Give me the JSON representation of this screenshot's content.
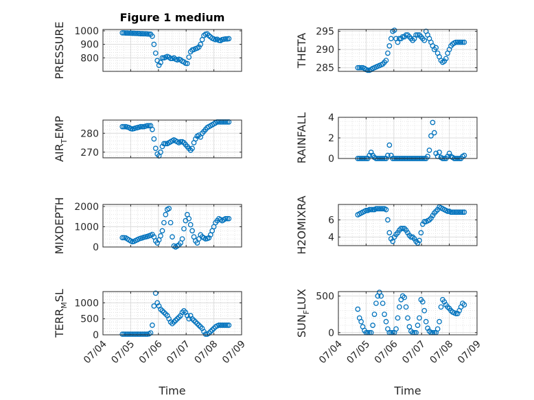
{
  "figure": {
    "title": "Figure 1 medium",
    "x_axis_label": "Time"
  },
  "colors": {
    "marker": "#0072BD",
    "axis": "#262626",
    "grid": "#DCDCDC"
  },
  "chart_data": [
    {
      "type": "scatter",
      "title": "Figure 1 medium",
      "ylabel": "PRESSURE",
      "ylim": [
        700,
        1010
      ],
      "yticks": [
        800,
        900,
        1000
      ],
      "x_ticks": [
        "07/04",
        "07/05",
        "07/06",
        "07/07",
        "07/08",
        "07/09"
      ],
      "xlim": [
        0,
        5
      ],
      "grid": true,
      "x": [
        0.7,
        0.76,
        0.82,
        0.88,
        0.94,
        1.0,
        1.06,
        1.12,
        1.18,
        1.24,
        1.3,
        1.36,
        1.42,
        1.48,
        1.54,
        1.6,
        1.66,
        1.72,
        1.78,
        1.84,
        1.9,
        1.96,
        2.02,
        2.08,
        2.14,
        2.2,
        2.26,
        2.32,
        2.38,
        2.44,
        2.5,
        2.56,
        2.62,
        2.68,
        2.74,
        2.8,
        2.86,
        2.92,
        2.98,
        3.04,
        3.1,
        3.16,
        3.22,
        3.28,
        3.34,
        3.4,
        3.46,
        3.52,
        3.58,
        3.64,
        3.7,
        3.76,
        3.82,
        3.88,
        3.94,
        4.0,
        4.06,
        4.12,
        4.18,
        4.24,
        4.3,
        4.36,
        4.42,
        4.48,
        4.54
      ],
      "y": [
        985,
        985,
        984,
        984,
        983,
        983,
        982,
        982,
        981,
        981,
        980,
        979,
        979,
        978,
        978,
        977,
        976,
        975,
        960,
        900,
        835,
        780,
        745,
        765,
        800,
        800,
        805,
        810,
        805,
        795,
        795,
        800,
        790,
        785,
        790,
        785,
        775,
        770,
        760,
        758,
        805,
        845,
        858,
        862,
        868,
        872,
        880,
        900,
        935,
        965,
        975,
        978,
        965,
        955,
        945,
        940,
        935,
        938,
        930,
        928,
        935,
        938,
        940,
        940,
        942
      ]
    },
    {
      "type": "scatter",
      "ylabel": "THETA",
      "ylim": [
        284,
        295.5
      ],
      "yticks": [
        285,
        290,
        295
      ],
      "x_ticks": [
        "07/04",
        "07/05",
        "07/06",
        "07/07",
        "07/08",
        "07/09"
      ],
      "xlim": [
        0,
        5
      ],
      "grid": true,
      "x": [
        0.7,
        0.76,
        0.82,
        0.88,
        0.94,
        1.0,
        1.06,
        1.12,
        1.18,
        1.24,
        1.3,
        1.36,
        1.42,
        1.48,
        1.54,
        1.6,
        1.66,
        1.72,
        1.78,
        1.84,
        1.9,
        1.96,
        2.02,
        2.08,
        2.14,
        2.2,
        2.26,
        2.32,
        2.38,
        2.44,
        2.5,
        2.56,
        2.62,
        2.68,
        2.74,
        2.8,
        2.86,
        2.92,
        2.98,
        3.04,
        3.1,
        3.16,
        3.22,
        3.28,
        3.34,
        3.4,
        3.46,
        3.52,
        3.58,
        3.64,
        3.7,
        3.76,
        3.82,
        3.88,
        3.94,
        4.0,
        4.06,
        4.12,
        4.18,
        4.24,
        4.3,
        4.36,
        4.42,
        4.48,
        4.54
      ],
      "y": [
        285,
        285,
        285,
        285,
        284.8,
        284.5,
        284.3,
        284.3,
        284.5,
        284.8,
        285,
        285.2,
        285.4,
        285.6,
        285.8,
        286,
        286.5,
        287,
        289,
        291,
        293,
        295,
        295.3,
        293,
        292,
        293,
        293,
        293.5,
        293.5,
        294,
        294,
        293.5,
        293,
        292.5,
        293,
        294,
        294,
        294,
        293.5,
        293,
        292.5,
        295,
        294,
        293,
        292,
        291,
        290,
        290.5,
        289,
        288,
        287,
        286.5,
        286.8,
        287.5,
        289,
        290,
        291,
        291.5,
        291.8,
        292,
        292,
        292,
        292,
        292,
        292
      ]
    },
    {
      "type": "scatter",
      "ylabel": "AIR_TEMP",
      "ylim": [
        267,
        287
      ],
      "yticks": [
        270,
        280
      ],
      "x_ticks": [
        "07/04",
        "07/05",
        "07/06",
        "07/07",
        "07/08",
        "07/09"
      ],
      "xlim": [
        0,
        5
      ],
      "grid": true,
      "x": [
        0.7,
        0.76,
        0.82,
        0.88,
        0.94,
        1.0,
        1.06,
        1.12,
        1.18,
        1.24,
        1.3,
        1.36,
        1.42,
        1.48,
        1.54,
        1.6,
        1.66,
        1.72,
        1.78,
        1.84,
        1.9,
        1.96,
        2.02,
        2.08,
        2.14,
        2.2,
        2.26,
        2.32,
        2.38,
        2.44,
        2.5,
        2.56,
        2.62,
        2.68,
        2.74,
        2.8,
        2.86,
        2.92,
        2.98,
        3.04,
        3.1,
        3.16,
        3.22,
        3.28,
        3.34,
        3.4,
        3.46,
        3.52,
        3.58,
        3.64,
        3.7,
        3.76,
        3.82,
        3.88,
        3.94,
        4.0,
        4.06,
        4.12,
        4.18,
        4.24,
        4.3,
        4.36,
        4.42,
        4.48,
        4.54
      ],
      "y": [
        283.5,
        283.5,
        283.5,
        283.3,
        283,
        282.5,
        282.3,
        282.5,
        282.8,
        283,
        283.2,
        283.5,
        283.5,
        283.5,
        283.8,
        284,
        284,
        284,
        282,
        277,
        272,
        269,
        268,
        270,
        273,
        274.5,
        274.5,
        274.5,
        275,
        275.5,
        276,
        276.5,
        276,
        275.5,
        275,
        275.5,
        275.5,
        275,
        274,
        273,
        272,
        271,
        272,
        275,
        277,
        278.5,
        279,
        278,
        280,
        281,
        282,
        283,
        283.5,
        284,
        284.5,
        285,
        285.5,
        286,
        286,
        286,
        286,
        286,
        286,
        286,
        286
      ]
    },
    {
      "type": "scatter",
      "ylabel": "RAINFALL",
      "ylim": [
        0,
        4
      ],
      "yticks": [
        0,
        2,
        4
      ],
      "x_ticks": [
        "07/04",
        "07/05",
        "07/06",
        "07/07",
        "07/08",
        "07/09"
      ],
      "xlim": [
        0,
        5
      ],
      "grid": true,
      "x": [
        0.7,
        0.76,
        0.82,
        0.88,
        0.94,
        1.0,
        1.06,
        1.12,
        1.18,
        1.24,
        1.3,
        1.36,
        1.42,
        1.48,
        1.54,
        1.6,
        1.66,
        1.72,
        1.78,
        1.84,
        1.9,
        1.96,
        2.02,
        2.08,
        2.14,
        2.2,
        2.26,
        2.32,
        2.38,
        2.44,
        2.5,
        2.56,
        2.62,
        2.68,
        2.74,
        2.8,
        2.86,
        2.92,
        2.98,
        3.04,
        3.1,
        3.16,
        3.22,
        3.28,
        3.34,
        3.4,
        3.46,
        3.52,
        3.58,
        3.64,
        3.7,
        3.76,
        3.82,
        3.88,
        3.94,
        4.0,
        4.06,
        4.12,
        4.18,
        4.24,
        4.3,
        4.36,
        4.42,
        4.48,
        4.54
      ],
      "y": [
        0,
        0,
        0,
        0,
        0,
        0,
        0,
        0.3,
        0.6,
        0.3,
        0.1,
        0,
        0,
        0,
        0,
        0,
        0,
        0,
        0.3,
        1.3,
        0.3,
        0,
        0,
        0,
        0,
        0,
        0,
        0,
        0,
        0,
        0,
        0,
        0,
        0,
        0,
        0,
        0,
        0,
        0,
        0,
        0,
        0,
        0.2,
        0.8,
        2.2,
        3.5,
        2.5,
        0.5,
        0.2,
        0.6,
        0.1,
        0,
        0,
        0,
        0.2,
        0.5,
        0.2,
        0.1,
        0,
        0,
        0,
        0,
        0,
        0.2,
        0.3
      ]
    },
    {
      "type": "scatter",
      "ylabel": "MIXDEPTH",
      "ylim": [
        0,
        2100
      ],
      "yticks": [
        0,
        1000,
        2000
      ],
      "x_ticks": [
        "07/04",
        "07/05",
        "07/06",
        "07/07",
        "07/08",
        "07/09"
      ],
      "xlim": [
        0,
        5
      ],
      "grid": true,
      "x": [
        0.7,
        0.76,
        0.82,
        0.88,
        0.94,
        1.0,
        1.06,
        1.12,
        1.18,
        1.24,
        1.3,
        1.36,
        1.42,
        1.48,
        1.54,
        1.6,
        1.66,
        1.72,
        1.78,
        1.84,
        1.9,
        1.96,
        2.02,
        2.08,
        2.14,
        2.2,
        2.26,
        2.32,
        2.38,
        2.44,
        2.5,
        2.56,
        2.62,
        2.68,
        2.74,
        2.8,
        2.86,
        2.92,
        2.98,
        3.04,
        3.1,
        3.16,
        3.22,
        3.28,
        3.34,
        3.4,
        3.46,
        3.52,
        3.58,
        3.64,
        3.7,
        3.76,
        3.82,
        3.88,
        3.94,
        4.0,
        4.06,
        4.12,
        4.18,
        4.24,
        4.3,
        4.36,
        4.42,
        4.48,
        4.54
      ],
      "y": [
        460,
        460,
        450,
        400,
        350,
        300,
        260,
        280,
        320,
        360,
        400,
        430,
        450,
        480,
        500,
        520,
        550,
        580,
        620,
        500,
        300,
        200,
        350,
        550,
        800,
        1200,
        1600,
        1850,
        1900,
        1200,
        500,
        50,
        0,
        50,
        100,
        200,
        400,
        900,
        1300,
        1600,
        1400,
        1100,
        800,
        500,
        300,
        200,
        400,
        600,
        500,
        450,
        400,
        420,
        450,
        600,
        800,
        1000,
        1200,
        1300,
        1400,
        1350,
        1300,
        1350,
        1400,
        1400,
        1400
      ]
    },
    {
      "type": "scatter",
      "ylabel": "H2OMIXRA",
      "ylim": [
        3,
        7.8
      ],
      "yticks": [
        4,
        6
      ],
      "x_ticks": [
        "07/04",
        "07/05",
        "07/06",
        "07/07",
        "07/08",
        "07/09"
      ],
      "xlim": [
        0,
        5
      ],
      "grid": true,
      "x": [
        0.7,
        0.76,
        0.82,
        0.88,
        0.94,
        1.0,
        1.06,
        1.12,
        1.18,
        1.24,
        1.3,
        1.36,
        1.42,
        1.48,
        1.54,
        1.6,
        1.66,
        1.72,
        1.78,
        1.84,
        1.9,
        1.96,
        2.02,
        2.08,
        2.14,
        2.2,
        2.26,
        2.32,
        2.38,
        2.44,
        2.5,
        2.56,
        2.62,
        2.68,
        2.74,
        2.8,
        2.86,
        2.92,
        2.98,
        3.04,
        3.1,
        3.16,
        3.22,
        3.28,
        3.34,
        3.4,
        3.46,
        3.52,
        3.58,
        3.64,
        3.7,
        3.76,
        3.82,
        3.88,
        3.94,
        4.0,
        4.06,
        4.12,
        4.18,
        4.24,
        4.3,
        4.36,
        4.42,
        4.48,
        4.54
      ],
      "y": [
        6.6,
        6.7,
        6.8,
        6.9,
        7,
        7.1,
        7.1,
        7.2,
        7.2,
        7.2,
        7.2,
        7.3,
        7.3,
        7.3,
        7.3,
        7.3,
        7.3,
        7.2,
        6,
        4.5,
        3.8,
        3.5,
        4,
        4.3,
        4.5,
        4.8,
        5,
        5,
        5,
        4.8,
        4.5,
        4.2,
        4,
        4,
        3.8,
        3.5,
        3.3,
        3.6,
        4.5,
        5.5,
        5.8,
        5.8,
        5.9,
        6,
        6.2,
        6.5,
        6.8,
        7,
        7.2,
        7.5,
        7.4,
        7.3,
        7.2,
        7.1,
        7,
        7,
        6.9,
        6.9,
        6.9,
        6.9,
        6.9,
        6.9,
        6.9,
        6.9,
        6.9
      ]
    },
    {
      "type": "scatter",
      "ylabel": "TERR_MSL",
      "ylim": [
        0,
        1350
      ],
      "yticks": [
        0,
        500,
        1000
      ],
      "x_ticks": [
        "07/04",
        "07/05",
        "07/06",
        "07/07",
        "07/08",
        "07/09"
      ],
      "xlim": [
        0,
        5
      ],
      "grid": true,
      "x": [
        0.7,
        0.76,
        0.82,
        0.88,
        0.94,
        1.0,
        1.06,
        1.12,
        1.18,
        1.24,
        1.3,
        1.36,
        1.42,
        1.48,
        1.54,
        1.6,
        1.66,
        1.72,
        1.78,
        1.84,
        1.9,
        1.96,
        2.02,
        2.08,
        2.14,
        2.2,
        2.26,
        2.32,
        2.38,
        2.44,
        2.5,
        2.56,
        2.62,
        2.68,
        2.74,
        2.8,
        2.86,
        2.92,
        2.98,
        3.04,
        3.1,
        3.16,
        3.22,
        3.28,
        3.34,
        3.4,
        3.46,
        3.52,
        3.58,
        3.64,
        3.7,
        3.76,
        3.82,
        3.88,
        3.94,
        4.0,
        4.06,
        4.12,
        4.18,
        4.24,
        4.3,
        4.36,
        4.42,
        4.48,
        4.54
      ],
      "y": [
        20,
        20,
        20,
        20,
        20,
        20,
        20,
        20,
        20,
        20,
        20,
        20,
        20,
        20,
        20,
        20,
        30,
        60,
        300,
        900,
        1300,
        1000,
        900,
        800,
        750,
        700,
        650,
        600,
        500,
        400,
        350,
        400,
        450,
        500,
        550,
        600,
        700,
        750,
        700,
        600,
        500,
        600,
        500,
        450,
        400,
        350,
        300,
        250,
        200,
        100,
        20,
        20,
        50,
        100,
        150,
        200,
        250,
        280,
        300,
        300,
        300,
        300,
        300,
        300,
        300
      ]
    },
    {
      "type": "scatter",
      "ylabel": "SUN_FLUX",
      "ylim": [
        -30,
        560
      ],
      "yticks": [
        0,
        500
      ],
      "x_ticks": [
        "07/04",
        "07/05",
        "07/06",
        "07/07",
        "07/08",
        "07/09"
      ],
      "xlim": [
        0,
        5
      ],
      "grid": true,
      "x": [
        0.7,
        0.76,
        0.82,
        0.88,
        0.94,
        1.0,
        1.06,
        1.12,
        1.18,
        1.24,
        1.3,
        1.36,
        1.42,
        1.48,
        1.54,
        1.6,
        1.66,
        1.72,
        1.78,
        1.84,
        1.9,
        1.96,
        2.02,
        2.08,
        2.14,
        2.2,
        2.26,
        2.32,
        2.38,
        2.44,
        2.5,
        2.56,
        2.62,
        2.68,
        2.74,
        2.8,
        2.86,
        2.92,
        2.98,
        3.04,
        3.1,
        3.16,
        3.22,
        3.28,
        3.34,
        3.4,
        3.46,
        3.52,
        3.58,
        3.64,
        3.7,
        3.76,
        3.82,
        3.88,
        3.94,
        4.0,
        4.06,
        4.12,
        4.18,
        4.24,
        4.3,
        4.36,
        4.42,
        4.48,
        4.54
      ],
      "y": [
        320,
        200,
        150,
        80,
        30,
        0,
        0,
        0,
        0,
        100,
        250,
        400,
        500,
        550,
        500,
        400,
        250,
        150,
        50,
        0,
        0,
        0,
        0,
        50,
        200,
        350,
        450,
        500,
        480,
        350,
        200,
        80,
        20,
        0,
        0,
        0,
        100,
        200,
        450,
        420,
        300,
        150,
        60,
        20,
        0,
        0,
        0,
        0,
        50,
        150,
        350,
        450,
        420,
        380,
        350,
        330,
        300,
        280,
        270,
        260,
        260,
        300,
        350,
        400,
        380
      ]
    }
  ]
}
